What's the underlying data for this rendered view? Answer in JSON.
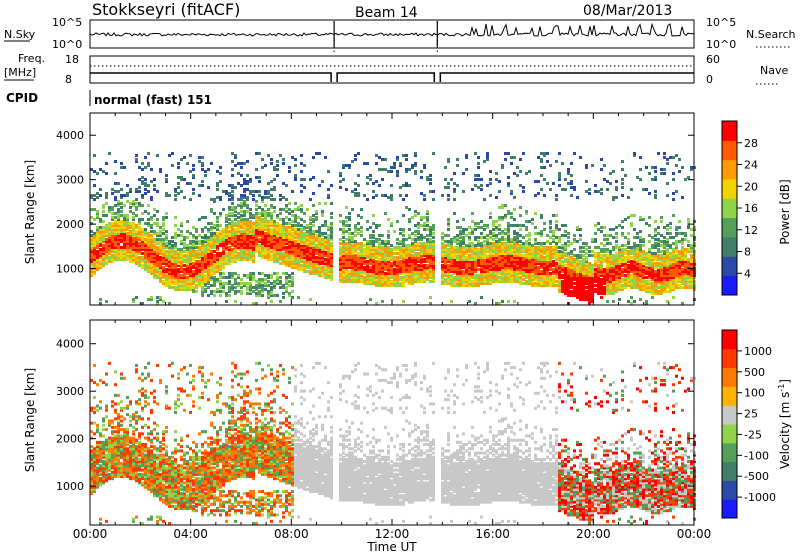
{
  "header": {
    "station": "Stokkseyri (fitACF)",
    "beam": "Beam 14",
    "date": "08/Mar/2013"
  },
  "strip": {
    "nsky_label": "N.Sky",
    "nsky_top": "10^5",
    "nsky_bottom": "10^0",
    "nsearch_label": "N.Search",
    "nsearch_top": "10^5",
    "nsearch_bottom": "10^0",
    "freq_label": "Freq.",
    "freq_unit": "[MHz]",
    "freq_top": "18",
    "freq_bottom": "8",
    "nave_label": "Nave",
    "nave_top": "60",
    "nave_bottom": "0",
    "cpid_label": "CPID",
    "cpid_value": "normal (fast) 151"
  },
  "colors": {
    "power": [
      "#1a1aff",
      "#2b4aa8",
      "#3d7f6a",
      "#52a05a",
      "#8fd44a",
      "#f2d200",
      "#ff9a00",
      "#ff5a00",
      "#ff0000"
    ],
    "velocity": [
      "#1a1aff",
      "#2b4aa8",
      "#3d7f6a",
      "#52a05a",
      "#8fd44a",
      "#c8c8c8",
      "#ffb300",
      "#ff7a00",
      "#ff3a00",
      "#ff0000"
    ]
  },
  "chart_data": [
    {
      "type": "heatmap",
      "name": "power",
      "ylabel": "Slant Range [km]",
      "ylim": [
        180,
        4500
      ],
      "yticks": [
        "1000",
        "2000",
        "3000",
        "4000"
      ],
      "colorbar_label": "Power [dB]",
      "colorbar_ticks": [
        "4",
        "8",
        "12",
        "16",
        "20",
        "24",
        "28"
      ]
    },
    {
      "type": "heatmap",
      "name": "velocity",
      "ylabel": "Slant Range [km]",
      "ylim": [
        180,
        4500
      ],
      "yticks": [
        "1000",
        "2000",
        "3000",
        "4000"
      ],
      "colorbar_label": "Velocity [m s^-1]",
      "colorbar_ticks": [
        "1000",
        "500",
        "100",
        "25",
        "-25",
        "-100",
        "-500",
        "-1000"
      ]
    }
  ],
  "xaxis": {
    "label": "Time UT",
    "ticks": [
      "00:00",
      "04:00",
      "08:00",
      "12:00",
      "16:00",
      "20:00",
      "00:00"
    ]
  }
}
